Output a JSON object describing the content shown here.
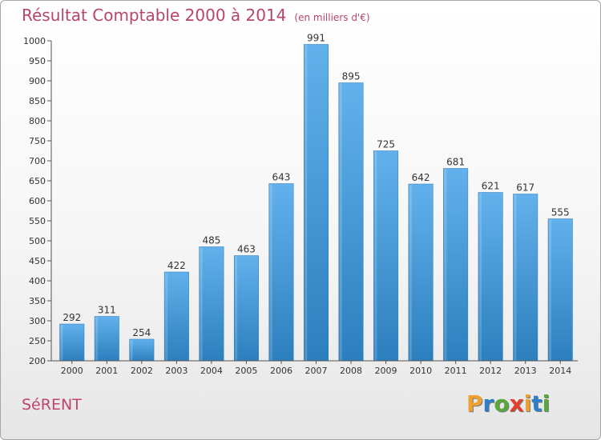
{
  "title": "Résultat Comptable 2000 à 2014",
  "subtitle": "(en milliers d'€)",
  "commune": "SéRENT",
  "logo": {
    "letters": [
      "P",
      "r",
      "o",
      "x",
      "i",
      "t",
      "i"
    ],
    "colors": [
      "#f0a030",
      "#2f7fc8",
      "#59a83a",
      "#e0402c",
      "#f0a030",
      "#2f7fc8",
      "#59a83a"
    ]
  },
  "colors": {
    "bar_top": "#62b1ec",
    "bar_bottom": "#2c7fbd",
    "axis": "#555555",
    "grid": "#e2e2e2",
    "title": "#b5466a"
  },
  "chart_data": {
    "type": "bar",
    "title": "Résultat Comptable 2000 à 2014",
    "xlabel": "",
    "ylabel": "",
    "ylim": [
      200,
      1000
    ],
    "yticks": [
      200,
      250,
      300,
      350,
      400,
      450,
      500,
      550,
      600,
      650,
      700,
      750,
      800,
      850,
      900,
      950,
      1000
    ],
    "grid": false,
    "categories": [
      "2000",
      "2001",
      "2002",
      "2003",
      "2004",
      "2005",
      "2006",
      "2007",
      "2008",
      "2009",
      "2010",
      "2011",
      "2012",
      "2013",
      "2014"
    ],
    "values": [
      292,
      311,
      254,
      422,
      485,
      463,
      643,
      991,
      895,
      725,
      642,
      681,
      621,
      617,
      555
    ]
  }
}
